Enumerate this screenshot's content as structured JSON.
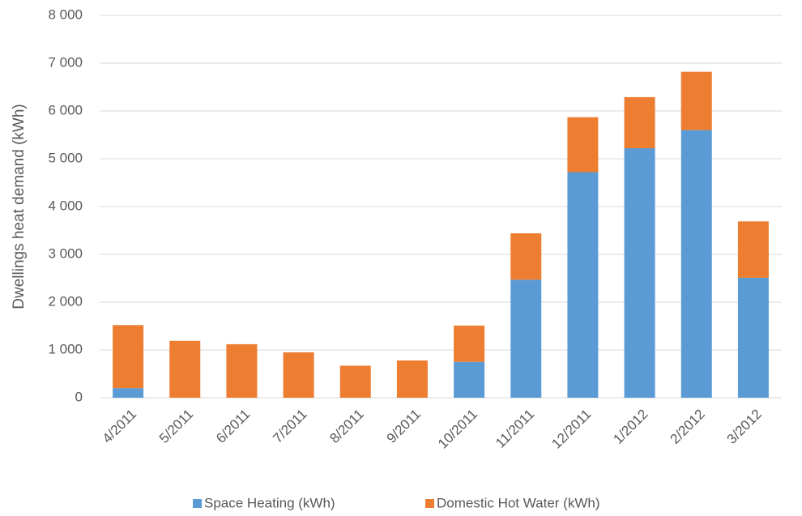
{
  "chart_data": {
    "type": "stacked_bar",
    "y_label": "Dwellings heat demand  (kWh)",
    "categories": [
      "4/2011",
      "5/2011",
      "6/2011",
      "7/2011",
      "8/2011",
      "9/2011",
      "10/2011",
      "11/2011",
      "12/2011",
      "1/2012",
      "2/2012",
      "3/2012"
    ],
    "series": [
      {
        "name": "Space Heating  (kWh)",
        "color": "#5b9bd5",
        "values": [
          200,
          0,
          0,
          0,
          0,
          0,
          750,
          2470,
          4720,
          5220,
          5600,
          2510
        ]
      },
      {
        "name": "Domestic Hot Water (kWh)",
        "color": "#ed7d31",
        "values": [
          1320,
          1190,
          1120,
          950,
          670,
          780,
          760,
          970,
          1150,
          1070,
          1220,
          1180
        ]
      }
    ],
    "ylim": [
      0,
      8000
    ],
    "yticks": [
      0,
      {
        "value": 1000,
        "label": "1 000"
      },
      {
        "value": 2000,
        "label": "2 000"
      },
      {
        "value": 3000,
        "label": "3 000"
      },
      {
        "value": 4000,
        "label": "4 000"
      },
      {
        "value": 5000,
        "label": "5 000"
      },
      {
        "value": 6000,
        "label": "6 000"
      },
      {
        "value": 7000,
        "label": "7 000"
      },
      {
        "value": 8000,
        "label": "8 000"
      }
    ],
    "grid": true,
    "legend": "bottom"
  }
}
